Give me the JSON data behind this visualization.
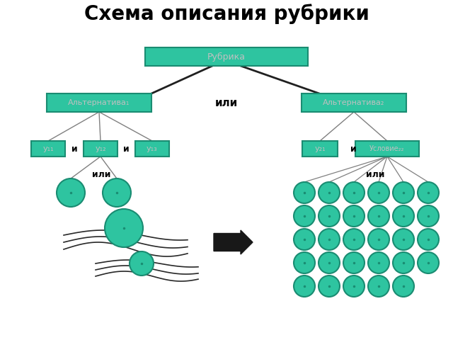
{
  "title": "Схема описания рубрики",
  "title_fontsize": 20,
  "title_fontweight": "bold",
  "bg_color": "#ffffff",
  "box_color": "#2ec4a0",
  "box_edge_color": "#1a8c72",
  "text_color": "#c0c0c0",
  "dark_text_color": "#000000",
  "line_color": "#808080",
  "circle_color": "#2ec4a0",
  "circle_edge_color": "#1a8c72",
  "labels": {
    "rubrika": "Рубрика",
    "alt1": "Альтернатива₁",
    "alt2": "Альтернатива₂",
    "u11": "у₁₁",
    "u12": "у₁₂",
    "u13": "у₁₃",
    "u21": "у₂₁",
    "uslovie22": "Условие₂₂",
    "ili_mid": "или",
    "ili_left": "или",
    "ili_right": "или",
    "i1": "и",
    "i2": "и",
    "i3": "и"
  }
}
